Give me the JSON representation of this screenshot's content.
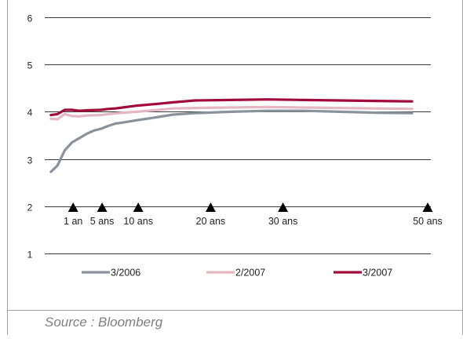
{
  "chart_data": {
    "type": "line",
    "title": "",
    "xlabel": "",
    "ylabel": "",
    "ylim": [
      1,
      6
    ],
    "yticks": [
      1,
      2,
      3,
      4,
      5,
      6
    ],
    "xlim": [
      0,
      50
    ],
    "grid": "horizontal",
    "legend_position": "bottom",
    "maturity_markers": [
      {
        "x": 1,
        "label": "1 an"
      },
      {
        "x": 5,
        "label": "5 ans"
      },
      {
        "x": 10,
        "label": "10 ans"
      },
      {
        "x": 20,
        "label": "20 ans"
      },
      {
        "x": 30,
        "label": "30 ans"
      },
      {
        "x": 50,
        "label": "50 ans"
      }
    ],
    "series": [
      {
        "name": "3/2006",
        "color": "#8a929b",
        "points": [
          [
            0.1,
            2.73
          ],
          [
            1,
            2.86
          ],
          [
            2,
            3.18
          ],
          [
            3,
            3.35
          ],
          [
            5,
            3.53
          ],
          [
            6,
            3.6
          ],
          [
            7,
            3.64
          ],
          [
            8,
            3.7
          ],
          [
            9,
            3.75
          ],
          [
            10,
            3.77
          ],
          [
            12,
            3.82
          ],
          [
            15,
            3.89
          ],
          [
            17,
            3.94
          ],
          [
            20,
            3.97
          ],
          [
            25,
            4.0
          ],
          [
            30,
            4.02
          ],
          [
            35,
            4.02
          ],
          [
            40,
            4.0
          ],
          [
            45,
            3.98
          ],
          [
            50,
            3.97
          ]
        ]
      },
      {
        "name": "2/2007",
        "color": "#e2b8c2",
        "points": [
          [
            0.1,
            3.85
          ],
          [
            1,
            3.84
          ],
          [
            2,
            3.95
          ],
          [
            3,
            3.91
          ],
          [
            4,
            3.9
          ],
          [
            5,
            3.92
          ],
          [
            7,
            3.93
          ],
          [
            8,
            3.95
          ],
          [
            10,
            3.98
          ],
          [
            12,
            4.0
          ],
          [
            15,
            4.04
          ],
          [
            17,
            4.07
          ],
          [
            20,
            4.08
          ],
          [
            25,
            4.09
          ],
          [
            30,
            4.1
          ],
          [
            35,
            4.09
          ],
          [
            40,
            4.08
          ],
          [
            45,
            4.07
          ],
          [
            50,
            4.06
          ]
        ]
      },
      {
        "name": "3/2007",
        "color": "#a30a3c",
        "points": [
          [
            0.1,
            3.93
          ],
          [
            1,
            3.95
          ],
          [
            2,
            4.04
          ],
          [
            3,
            4.04
          ],
          [
            4,
            4.02
          ],
          [
            5,
            4.03
          ],
          [
            7,
            4.04
          ],
          [
            8,
            4.06
          ],
          [
            9,
            4.07
          ],
          [
            10,
            4.09
          ],
          [
            12,
            4.13
          ],
          [
            15,
            4.17
          ],
          [
            17,
            4.2
          ],
          [
            20,
            4.24
          ],
          [
            25,
            4.25
          ],
          [
            30,
            4.26
          ],
          [
            35,
            4.25
          ],
          [
            40,
            4.24
          ],
          [
            45,
            4.23
          ],
          [
            50,
            4.22
          ]
        ]
      }
    ]
  },
  "source": "Source : Bloomberg"
}
